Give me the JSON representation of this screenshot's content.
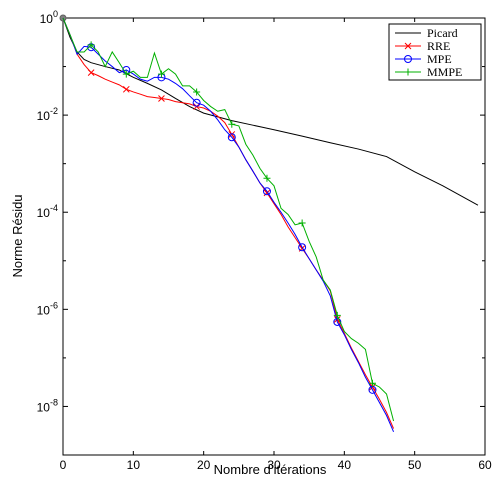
{
  "chart_data": {
    "type": "line",
    "title": "",
    "xlabel": "Nombre d’itérations",
    "ylabel": "Norme Résidu",
    "xlim": [
      0,
      60
    ],
    "ylim": [
      1e-09,
      1
    ],
    "yscale": "log",
    "grid": false,
    "legend_position": "top-right",
    "x_ticks": [
      "0",
      "10",
      "20",
      "30",
      "40",
      "50",
      "60"
    ],
    "x_tick_values": [
      0,
      10,
      20,
      30,
      40,
      50,
      60
    ],
    "y_ticks": [
      {
        "value": 1,
        "base": "10",
        "exp": "0"
      },
      {
        "value": 0.01,
        "base": "10",
        "exp": "-2"
      },
      {
        "value": 0.0001,
        "base": "10",
        "exp": "-4"
      },
      {
        "value": 1e-06,
        "base": "10",
        "exp": "-6"
      },
      {
        "value": 1e-08,
        "base": "10",
        "exp": "-8"
      }
    ],
    "series": [
      {
        "name": "Picard",
        "color": "#000000",
        "marker": "none",
        "x": [
          0,
          1,
          2,
          3,
          4,
          6,
          8,
          10,
          12,
          14,
          16,
          18,
          20,
          22,
          24,
          27,
          30,
          34,
          38,
          42,
          46,
          50,
          54,
          59
        ],
        "y": [
          1,
          0.4,
          0.2,
          0.14,
          0.12,
          0.1,
          0.085,
          0.06,
          0.045,
          0.033,
          0.022,
          0.015,
          0.011,
          0.0092,
          0.0077,
          0.0062,
          0.005,
          0.0037,
          0.0027,
          0.002,
          0.0014,
          0.00068,
          0.00035,
          0.00014
        ]
      },
      {
        "name": "RRE",
        "color": "#ff0000",
        "marker": "x",
        "x": [
          0,
          1,
          2,
          3,
          4,
          5,
          6,
          7,
          8,
          9,
          10,
          11,
          12,
          13,
          14,
          15,
          16,
          17,
          18,
          19,
          20,
          21,
          22,
          23,
          24,
          25,
          26,
          27,
          28,
          29,
          30,
          31,
          32,
          33,
          34,
          35,
          36,
          37,
          38,
          39,
          40,
          41,
          42,
          43,
          44,
          45,
          46,
          47
        ],
        "y": [
          1,
          0.45,
          0.18,
          0.11,
          0.075,
          0.065,
          0.055,
          0.048,
          0.042,
          0.034,
          0.03,
          0.027,
          0.024,
          0.023,
          0.022,
          0.021,
          0.019,
          0.018,
          0.017,
          0.015,
          0.014,
          0.012,
          0.0095,
          0.007,
          0.004,
          0.0022,
          0.0012,
          0.0007,
          0.0004,
          0.00025,
          0.00015,
          9e-05,
          5e-05,
          3e-05,
          1.8e-05,
          1.1e-05,
          6.5e-06,
          4e-06,
          2.4e-06,
          6.2e-07,
          3.2e-07,
          1.6e-07,
          8.5e-08,
          4.5e-08,
          2.5e-08,
          1.4e-08,
          7.5e-09,
          3.5e-09
        ]
      },
      {
        "name": "MPE",
        "color": "#0000ff",
        "marker": "o",
        "x": [
          0,
          1,
          2,
          3,
          4,
          5,
          6,
          7,
          8,
          9,
          10,
          11,
          12,
          13,
          14,
          15,
          16,
          17,
          18,
          19,
          20,
          21,
          22,
          23,
          24,
          25,
          26,
          27,
          28,
          29,
          30,
          31,
          32,
          33,
          34,
          35,
          36,
          37,
          38,
          39,
          40,
          41,
          42,
          43,
          44,
          45,
          46,
          47
        ],
        "y": [
          1,
          0.45,
          0.18,
          0.26,
          0.25,
          0.18,
          0.13,
          0.1,
          0.075,
          0.085,
          0.07,
          0.055,
          0.05,
          0.06,
          0.06,
          0.055,
          0.045,
          0.035,
          0.025,
          0.018,
          0.016,
          0.012,
          0.008,
          0.005,
          0.0035,
          0.0022,
          0.0012,
          0.0007,
          0.0004,
          0.00027,
          0.00016,
          0.0001,
          6e-05,
          3.5e-05,
          1.9e-05,
          1.1e-05,
          6.5e-06,
          3.8e-06,
          1.9e-06,
          5.5e-07,
          3e-07,
          1.5e-07,
          8e-08,
          4e-08,
          2.2e-08,
          1.2e-08,
          6.5e-09,
          3e-09
        ]
      },
      {
        "name": "MMPE",
        "color": "#00b000",
        "marker": "+",
        "x": [
          0,
          1,
          2,
          3,
          4,
          5,
          6,
          7,
          8,
          9,
          10,
          11,
          12,
          13,
          14,
          15,
          16,
          17,
          18,
          19,
          20,
          21,
          22,
          23,
          24,
          25,
          26,
          27,
          28,
          29,
          30,
          31,
          32,
          33,
          34,
          35,
          36,
          37,
          38,
          39,
          40,
          41,
          42,
          43,
          44,
          45,
          46,
          47
        ],
        "y": [
          1,
          0.45,
          0.2,
          0.2,
          0.28,
          0.2,
          0.1,
          0.2,
          0.12,
          0.07,
          0.08,
          0.06,
          0.06,
          0.19,
          0.07,
          0.09,
          0.07,
          0.04,
          0.04,
          0.03,
          0.02,
          0.015,
          0.012,
          0.013,
          0.0065,
          0.006,
          0.0025,
          0.0015,
          0.0008,
          0.0005,
          0.00035,
          0.00012,
          9e-05,
          5.5e-05,
          6e-05,
          2.5e-05,
          1.2e-05,
          4e-06,
          2.5e-06,
          7.5e-07,
          3.5e-07,
          2.5e-07,
          2e-07,
          1.5e-07,
          3e-08,
          2.5e-08,
          1.8e-08,
          5e-09
        ]
      }
    ]
  }
}
